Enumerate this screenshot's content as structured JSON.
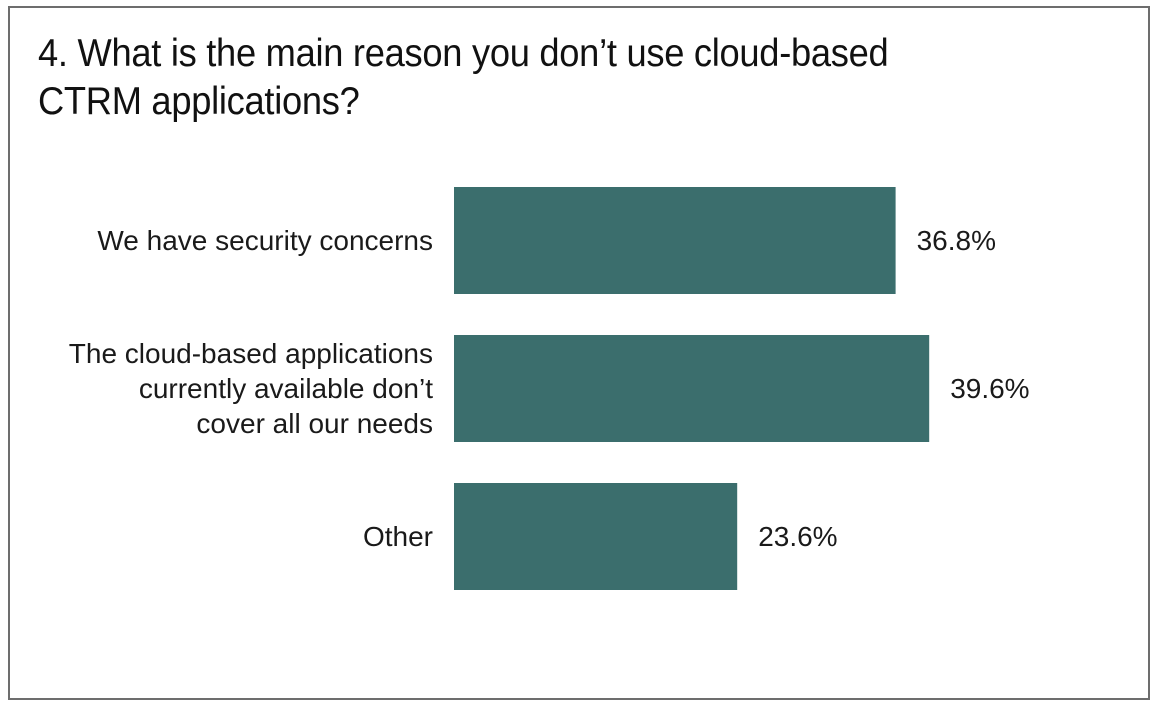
{
  "title_line1": "4. What is the main reason you don’t use cloud-based",
  "title_line2": "CTRM applications?",
  "colors": {
    "bar": "#3b6e6d",
    "frame": "#6d6d6d",
    "text": "#1a1a1a"
  },
  "chart_data": {
    "type": "bar",
    "orientation": "horizontal",
    "title": "4. What is the main reason you don’t use cloud-based CTRM applications?",
    "categories": [
      [
        "We have security concerns"
      ],
      [
        "The cloud-based applications",
        "currently available don’t",
        "cover all our needs"
      ],
      [
        "Other"
      ]
    ],
    "values": [
      36.8,
      39.6,
      23.6
    ],
    "value_labels": [
      "36.8%",
      "39.6%",
      "23.6%"
    ],
    "unit": "%",
    "xlim": [
      0,
      40
    ],
    "grid": false,
    "legend": "none"
  }
}
